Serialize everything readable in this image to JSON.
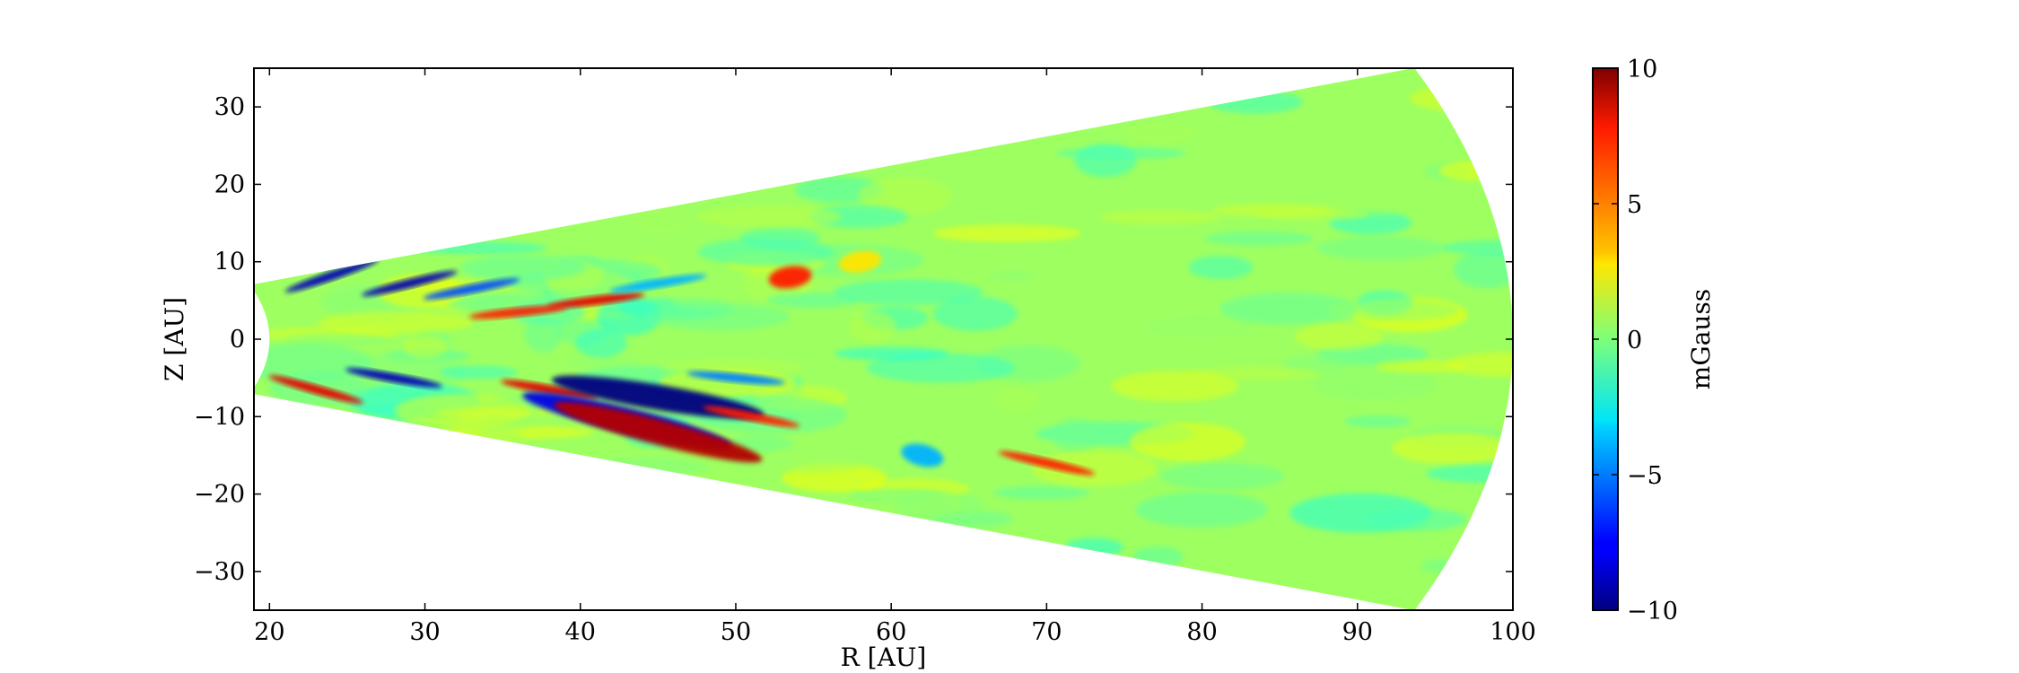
{
  "chart_data": {
    "type": "heatmap",
    "title": "",
    "xlabel": "R [AU]",
    "ylabel": "Z [AU]",
    "xlim": [
      19,
      100
    ],
    "ylim": [
      -35,
      35
    ],
    "x_ticks": [
      20,
      30,
      40,
      50,
      60,
      70,
      80,
      90,
      100
    ],
    "y_ticks": [
      30,
      20,
      10,
      0,
      -10,
      -20,
      -30
    ],
    "x_tick_labels": [
      "20",
      "30",
      "40",
      "50",
      "60",
      "70",
      "80",
      "90",
      "100"
    ],
    "y_tick_labels": [
      "30",
      "20",
      "10",
      "0",
      "−10",
      "−20",
      "−30"
    ],
    "grid": false,
    "domain": {
      "shape": "spherical wedge",
      "r_inner_au": 20,
      "r_outer_au": 100,
      "half_opening_deg": 20.5
    },
    "colorbar": {
      "label": "mGauss",
      "colormap": "jet",
      "range": [
        -10,
        10
      ],
      "ticks": [
        10,
        5,
        0,
        -5,
        -10
      ],
      "tick_labels": [
        "10",
        "5",
        "0",
        "−5",
        "−10"
      ]
    },
    "background_value": 0.6,
    "structures": [
      {
        "r": 24,
        "z": 8.2,
        "value": -9,
        "extent": "streak"
      },
      {
        "r": 29,
        "z": 7.2,
        "value": -9,
        "extent": "streak"
      },
      {
        "r": 33,
        "z": 6.5,
        "value": -6,
        "extent": "streak"
      },
      {
        "r": 41,
        "z": 5.0,
        "value": 8,
        "extent": "streak"
      },
      {
        "r": 36,
        "z": 3.5,
        "value": 7,
        "extent": "streak"
      },
      {
        "r": 53.5,
        "z": 8.0,
        "value": 7,
        "extent": "blob"
      },
      {
        "r": 45,
        "z": 7.2,
        "value": -4,
        "extent": "streak"
      },
      {
        "r": 58,
        "z": 10.0,
        "value": 3,
        "extent": "blob"
      },
      {
        "r": 28,
        "z": -5.0,
        "value": -9,
        "extent": "streak"
      },
      {
        "r": 23,
        "z": -6.5,
        "value": 8,
        "extent": "streak"
      },
      {
        "r": 38,
        "z": -6.5,
        "value": 8,
        "extent": "streak"
      },
      {
        "r": 45,
        "z": -7.5,
        "value": -10,
        "extent": "band"
      },
      {
        "r": 43,
        "z": -10.5,
        "value": -8,
        "extent": "band"
      },
      {
        "r": 45,
        "z": -12.0,
        "value": 9,
        "extent": "band"
      },
      {
        "r": 51,
        "z": -10.0,
        "value": 7,
        "extent": "streak"
      },
      {
        "r": 70,
        "z": -16.0,
        "value": 7,
        "extent": "streak"
      },
      {
        "r": 62,
        "z": -15.0,
        "value": -4,
        "extent": "blob"
      },
      {
        "r": 50,
        "z": -5.0,
        "value": -5,
        "extent": "streak"
      }
    ]
  }
}
